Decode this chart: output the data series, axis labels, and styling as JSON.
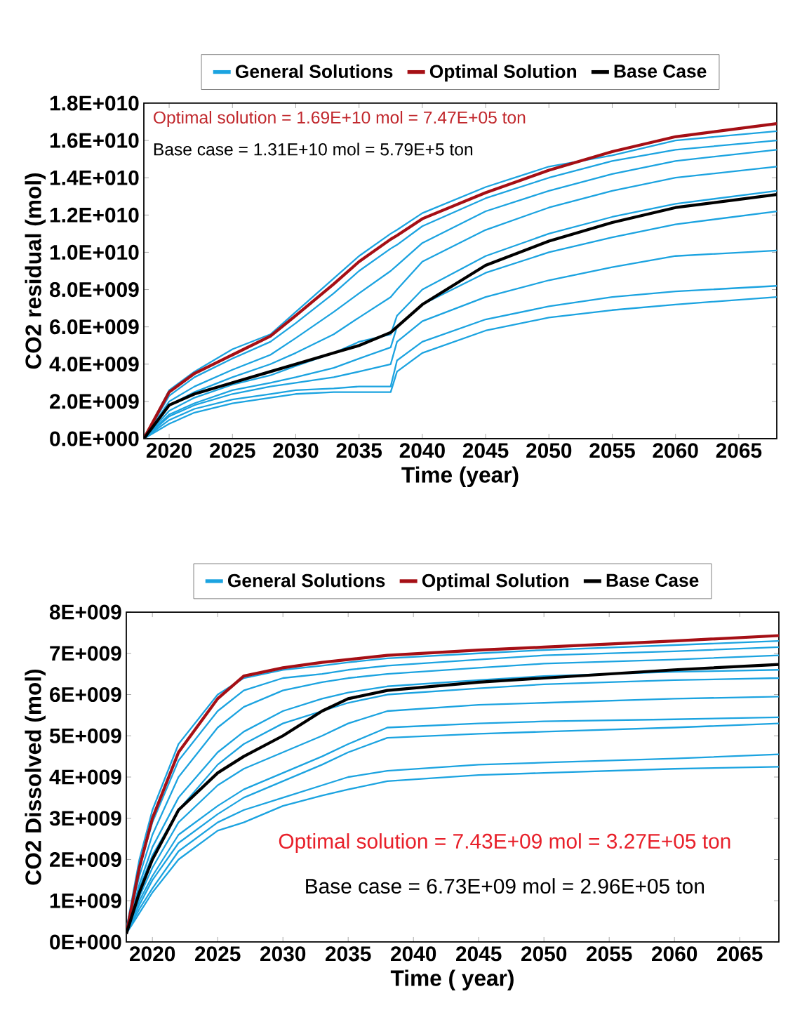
{
  "chart_data": [
    {
      "type": "line",
      "xlabel": "Time (year)",
      "ylabel": "CO2 residual (mol)",
      "legend": "top",
      "marker": "none",
      "line_style": "solid",
      "xlim": [
        2018,
        2068
      ],
      "xticks": [
        2020,
        2025,
        2030,
        2035,
        2040,
        2045,
        2050,
        2055,
        2060,
        2065
      ],
      "ylim": [
        0,
        18000000000.0
      ],
      "yticks": [
        {
          "value": 0,
          "label": "0.0E+000"
        },
        {
          "value": 2000000000.0,
          "label": "2.0E+009"
        },
        {
          "value": 4000000000.0,
          "label": "4.0E+009"
        },
        {
          "value": 6000000000.0,
          "label": "6.0E+009"
        },
        {
          "value": 8000000000.0,
          "label": "8.0E+009"
        },
        {
          "value": 10000000000.0,
          "label": "1.0E+010"
        },
        {
          "value": 12000000000.0,
          "label": "1.2E+010"
        },
        {
          "value": 14000000000.0,
          "label": "1.4E+010"
        },
        {
          "value": 16000000000.0,
          "label": "1.6E+010"
        },
        {
          "value": 18000000000.0,
          "label": "1.8E+010"
        }
      ],
      "annotations": [
        "Optimal solution = 1.69E+10 mol = 7.47E+05 ton",
        "Base case = 1.31E+10 mol = 5.79E+5 ton"
      ],
      "x": [
        2018,
        2020,
        2022,
        2025,
        2028,
        2030,
        2033,
        2035,
        2037.5,
        2038,
        2040,
        2045,
        2050,
        2055,
        2060,
        2068
      ],
      "series": [
        {
          "name": "General Solutions",
          "color": "#1ba3e0",
          "values": [
            0,
            2600000000.0,
            3600000000.0,
            4800000000.0,
            5600000000.0,
            6800000000.0,
            8600000000.0,
            9800000000.0,
            11000000000.0,
            11200000000.0,
            12100000000.0,
            13500000000.0,
            14600000000.0,
            15200000000.0,
            16000000000.0,
            16500000000.0
          ]
        },
        {
          "color": "#1ba3e0",
          "values": [
            0,
            2300000000.0,
            3300000000.0,
            4300000000.0,
            5200000000.0,
            6200000000.0,
            7800000000.0,
            9000000000.0,
            10200000000.0,
            10400000000.0,
            11400000000.0,
            12900000000.0,
            14000000000.0,
            14900000000.0,
            15500000000.0,
            16000000000.0
          ]
        },
        {
          "color": "#1ba3e0",
          "values": [
            0,
            2000000000.0,
            2800000000.0,
            3700000000.0,
            4500000000.0,
            5400000000.0,
            6800000000.0,
            7800000000.0,
            9000000000.0,
            9300000000.0,
            10500000000.0,
            12200000000.0,
            13300000000.0,
            14200000000.0,
            14900000000.0,
            15500000000.0
          ]
        },
        {
          "color": "#1ba3e0",
          "values": [
            0,
            1800000000.0,
            2500000000.0,
            3300000000.0,
            4000000000.0,
            4600000000.0,
            5600000000.0,
            6500000000.0,
            7600000000.0,
            8000000000.0,
            9500000000.0,
            11200000000.0,
            12400000000.0,
            13300000000.0,
            14000000000.0,
            14600000000.0
          ]
        },
        {
          "color": "#1ba3e0",
          "values": [
            0,
            1500000000.0,
            2200000000.0,
            2900000000.0,
            3400000000.0,
            3900000000.0,
            4600000000.0,
            5200000000.0,
            5600000000.0,
            6600000000.0,
            8000000000.0,
            9800000000.0,
            11000000000.0,
            11900000000.0,
            12600000000.0,
            13300000000.0
          ]
        },
        {
          "color": "#1ba3e0",
          "values": [
            0,
            1300000000.0,
            1900000000.0,
            2600000000.0,
            3000000000.0,
            3300000000.0,
            3800000000.0,
            4300000000.0,
            4900000000.0,
            6000000000.0,
            7200000000.0,
            8900000000.0,
            10000000000.0,
            10800000000.0,
            11500000000.0,
            12200000000.0
          ]
        },
        {
          "color": "#1ba3e0",
          "values": [
            0,
            1200000000.0,
            1800000000.0,
            2400000000.0,
            2800000000.0,
            3000000000.0,
            3300000000.0,
            3600000000.0,
            4000000000.0,
            5200000000.0,
            6300000000.0,
            7600000000.0,
            8500000000.0,
            9200000000.0,
            9800000000.0,
            10100000000.0
          ]
        },
        {
          "color": "#1ba3e0",
          "values": [
            0,
            1000000000.0,
            1600000000.0,
            2100000000.0,
            2400000000.0,
            2600000000.0,
            2700000000.0,
            2800000000.0,
            2800000000.0,
            4200000000.0,
            5200000000.0,
            6400000000.0,
            7100000000.0,
            7600000000.0,
            7900000000.0,
            8200000000.0
          ]
        },
        {
          "color": "#1ba3e0",
          "values": [
            0,
            800000000.0,
            1400000000.0,
            1900000000.0,
            2200000000.0,
            2400000000.0,
            2500000000.0,
            2500000000.0,
            2500000000.0,
            3600000000.0,
            4600000000.0,
            5800000000.0,
            6500000000.0,
            6900000000.0,
            7200000000.0,
            7600000000.0
          ]
        },
        {
          "name": "Optimal Solution",
          "color": "#a50f15",
          "values": [
            0,
            2500000000.0,
            3500000000.0,
            4500000000.0,
            5500000000.0,
            6600000000.0,
            8300000000.0,
            9500000000.0,
            10700000000.0,
            10900000000.0,
            11800000000.0,
            13200000000.0,
            14400000000.0,
            15400000000.0,
            16200000000.0,
            16900000000.0
          ]
        },
        {
          "name": "Base Case",
          "color": "#000000",
          "values": [
            0,
            1800000000.0,
            2400000000.0,
            3000000000.0,
            3600000000.0,
            4000000000.0,
            4600000000.0,
            5000000000.0,
            5700000000.0,
            6000000000.0,
            7200000000.0,
            9300000000.0,
            10600000000.0,
            11600000000.0,
            12400000000.0,
            13100000000.0
          ]
        }
      ]
    },
    {
      "type": "line",
      "xlabel": "Time ( year)",
      "ylabel": "CO2 Dissolved (mol)",
      "legend": "top",
      "marker": "none",
      "line_style": "solid",
      "xlim": [
        2018,
        2068
      ],
      "xticks": [
        2020,
        2025,
        2030,
        2035,
        2040,
        2045,
        2050,
        2055,
        2060,
        2065
      ],
      "ylim": [
        0,
        8000000000.0
      ],
      "yticks": [
        {
          "value": 0,
          "label": "0E+000"
        },
        {
          "value": 1000000000.0,
          "label": "1E+009"
        },
        {
          "value": 2000000000.0,
          "label": "2E+009"
        },
        {
          "value": 3000000000.0,
          "label": "3E+009"
        },
        {
          "value": 4000000000.0,
          "label": "4E+009"
        },
        {
          "value": 5000000000.0,
          "label": "5E+009"
        },
        {
          "value": 6000000000.0,
          "label": "6E+009"
        },
        {
          "value": 7000000000.0,
          "label": "7E+009"
        },
        {
          "value": 8000000000.0,
          "label": "8E+009"
        }
      ],
      "annotations": [
        "Optimal solution = 7.43E+09 mol = 3.27E+05 ton",
        "Base case = 6.73E+09 mol = 2.96E+05 ton"
      ],
      "x": [
        2018,
        2019,
        2020,
        2022,
        2025,
        2027,
        2030,
        2033,
        2035,
        2038,
        2045,
        2050,
        2060,
        2068
      ],
      "series": [
        {
          "name": "General Solutions",
          "color": "#1ba3e0",
          "values": [
            300000000.0,
            2000000000.0,
            3200000000.0,
            4800000000.0,
            6000000000.0,
            6400000000.0,
            6600000000.0,
            6700000000.0,
            6780000000.0,
            6880000000.0,
            7000000000.0,
            7080000000.0,
            7200000000.0,
            7300000000.0
          ]
        },
        {
          "color": "#1ba3e0",
          "values": [
            300000000.0,
            1800000000.0,
            2900000000.0,
            4400000000.0,
            5600000000.0,
            6100000000.0,
            6400000000.0,
            6500000000.0,
            6600000000.0,
            6700000000.0,
            6850000000.0,
            6950000000.0,
            7050000000.0,
            7150000000.0
          ]
        },
        {
          "color": "#1ba3e0",
          "values": [
            300000000.0,
            1600000000.0,
            2600000000.0,
            4000000000.0,
            5200000000.0,
            5700000000.0,
            6100000000.0,
            6300000000.0,
            6400000000.0,
            6500000000.0,
            6650000000.0,
            6750000000.0,
            6850000000.0,
            6950000000.0
          ]
        },
        {
          "color": "#1ba3e0",
          "values": [
            200000000.0,
            1400000000.0,
            2300000000.0,
            3500000000.0,
            4600000000.0,
            5100000000.0,
            5600000000.0,
            5900000000.0,
            6050000000.0,
            6200000000.0,
            6350000000.0,
            6450000000.0,
            6550000000.0,
            6600000000.0
          ]
        },
        {
          "color": "#1ba3e0",
          "values": [
            200000000.0,
            1300000000.0,
            2100000000.0,
            3200000000.0,
            4300000000.0,
            4800000000.0,
            5300000000.0,
            5600000000.0,
            5800000000.0,
            6000000000.0,
            6150000000.0,
            6250000000.0,
            6350000000.0,
            6400000000.0
          ]
        },
        {
          "color": "#1ba3e0",
          "values": [
            200000000.0,
            1100000000.0,
            1800000000.0,
            2900000000.0,
            3800000000.0,
            4200000000.0,
            4600000000.0,
            5000000000.0,
            5300000000.0,
            5600000000.0,
            5750000000.0,
            5800000000.0,
            5900000000.0,
            5950000000.0
          ]
        },
        {
          "color": "#1ba3e0",
          "values": [
            200000000.0,
            1000000000.0,
            1600000000.0,
            2600000000.0,
            3300000000.0,
            3700000000.0,
            4100000000.0,
            4500000000.0,
            4800000000.0,
            5200000000.0,
            5300000000.0,
            5350000000.0,
            5400000000.0,
            5450000000.0
          ]
        },
        {
          "color": "#1ba3e0",
          "values": [
            200000000.0,
            900000000.0,
            1500000000.0,
            2400000000.0,
            3100000000.0,
            3500000000.0,
            3900000000.0,
            4300000000.0,
            4600000000.0,
            4950000000.0,
            5050000000.0,
            5100000000.0,
            5200000000.0,
            5300000000.0
          ]
        },
        {
          "color": "#1ba3e0",
          "values": [
            200000000.0,
            800000000.0,
            1300000000.0,
            2200000000.0,
            2900000000.0,
            3200000000.0,
            3500000000.0,
            3800000000.0,
            4000000000.0,
            4150000000.0,
            4300000000.0,
            4350000000.0,
            4450000000.0,
            4550000000.0
          ]
        },
        {
          "color": "#1ba3e0",
          "values": [
            200000000.0,
            700000000.0,
            1200000000.0,
            2000000000.0,
            2700000000.0,
            2900000000.0,
            3300000000.0,
            3550000000.0,
            3700000000.0,
            3900000000.0,
            4050000000.0,
            4100000000.0,
            4200000000.0,
            4250000000.0
          ]
        },
        {
          "name": "Optimal Solution",
          "color": "#a50f15",
          "values": [
            200000000.0,
            1800000000.0,
            3000000000.0,
            4600000000.0,
            5900000000.0,
            6450000000.0,
            6650000000.0,
            6780000000.0,
            6850000000.0,
            6950000000.0,
            7080000000.0,
            7150000000.0,
            7300000000.0,
            7430000000.0
          ]
        },
        {
          "name": "Base Case",
          "color": "#000000",
          "values": [
            200000000.0,
            1200000000.0,
            2000000000.0,
            3200000000.0,
            4100000000.0,
            4500000000.0,
            5000000000.0,
            5600000000.0,
            5900000000.0,
            6100000000.0,
            6300000000.0,
            6400000000.0,
            6600000000.0,
            6730000000.0
          ]
        }
      ]
    }
  ]
}
